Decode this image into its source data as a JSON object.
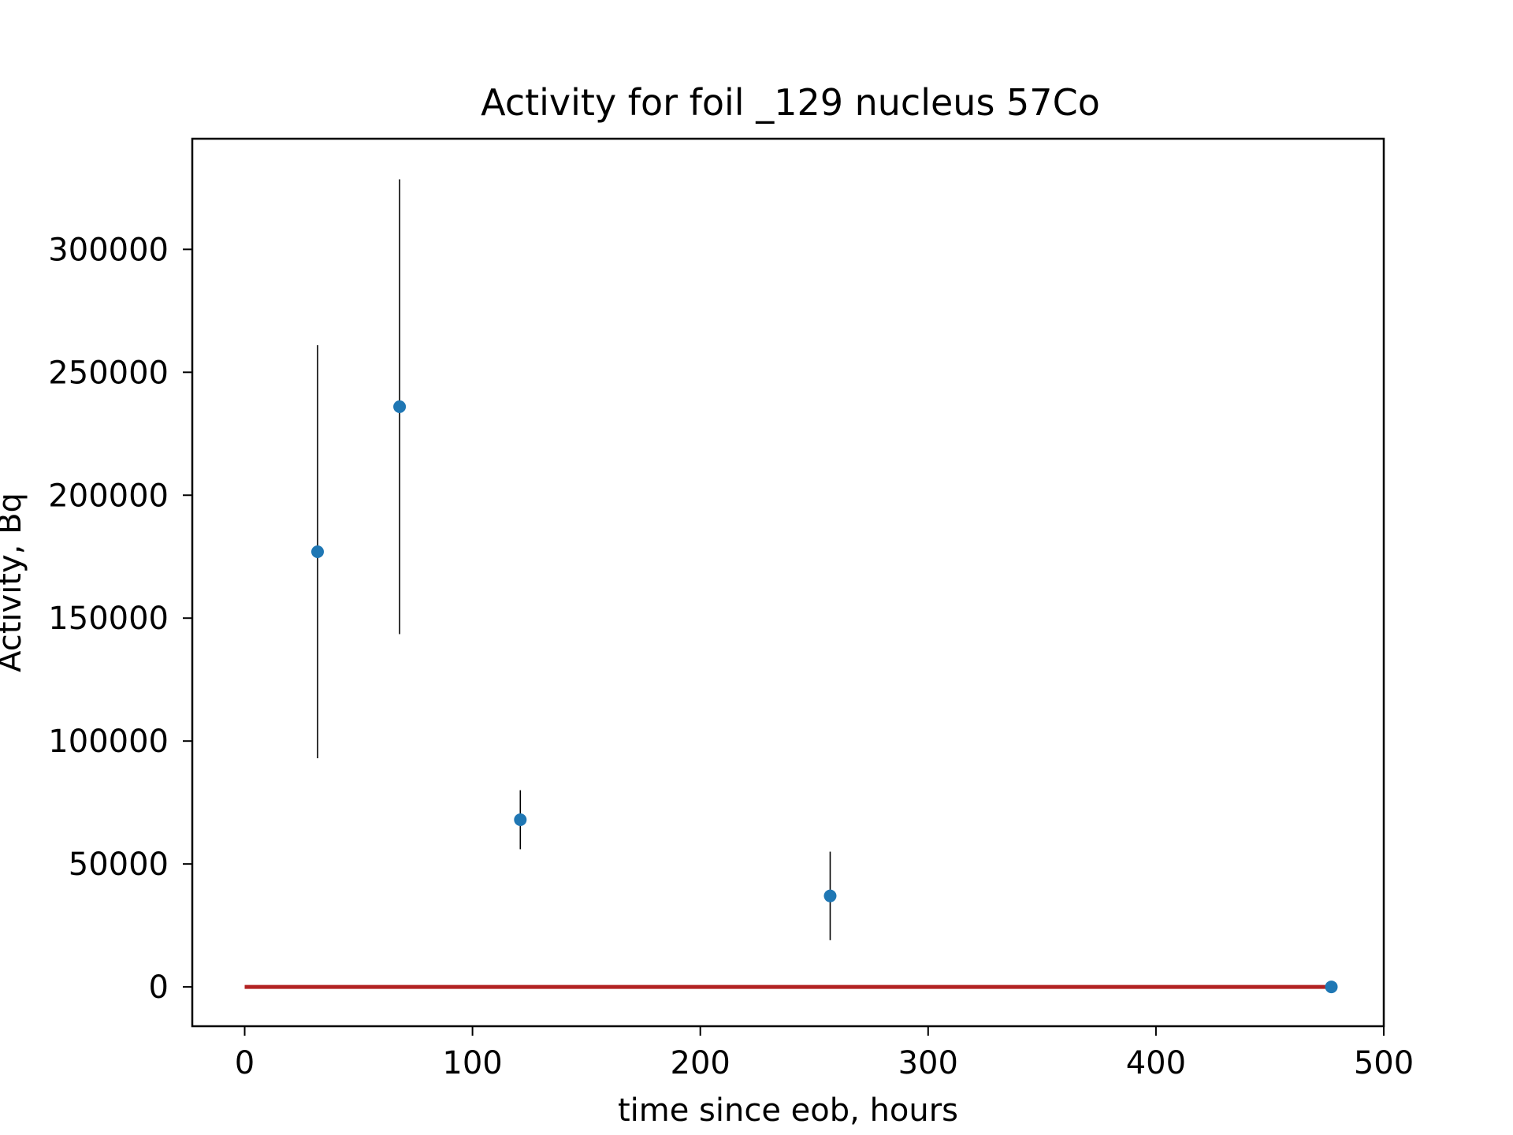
{
  "chart_data": {
    "type": "scatter",
    "title": "Activity for foil _129 nucleus 57Co",
    "xlabel": "time since eob, hours",
    "ylabel": "Activity, Bq",
    "xlim": [
      -23,
      500
    ],
    "ylim": [
      -16000,
      345000
    ],
    "xticks": [
      0,
      100,
      200,
      300,
      400,
      500
    ],
    "yticks": [
      0,
      50000,
      100000,
      150000,
      200000,
      250000,
      300000
    ],
    "grid": false,
    "series": [
      {
        "type": "errorbar",
        "color": "#1f77b4",
        "errorbar_color": "#000000",
        "points": [
          {
            "x": 32,
            "y": 177000,
            "err": 84000
          },
          {
            "x": 68,
            "y": 236000,
            "err": 92500
          },
          {
            "x": 121,
            "y": 68000,
            "err": 12000
          },
          {
            "x": 257,
            "y": 37000,
            "err": 18000
          },
          {
            "x": 477,
            "y": 0,
            "err": 0
          }
        ]
      },
      {
        "type": "line",
        "color": "#b22222",
        "x": [
          0,
          477
        ],
        "y": [
          0,
          0
        ]
      }
    ]
  }
}
